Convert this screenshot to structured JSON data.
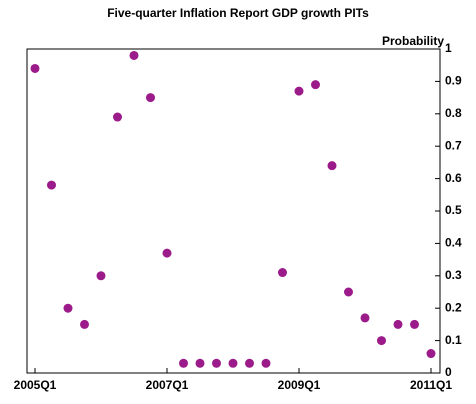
{
  "chart_data": {
    "type": "scatter",
    "title": "Five-quarter Inflation Report GDP growth PITs",
    "y_label": "Probability",
    "categories": [
      "2005Q1",
      null,
      null,
      null,
      null,
      null,
      null,
      null,
      "2007Q1",
      null,
      null,
      null,
      null,
      null,
      null,
      null,
      "2009Q1",
      null,
      null,
      null,
      null,
      null,
      null,
      null,
      "2011Q1"
    ],
    "values": [
      0.94,
      0.58,
      0.2,
      0.15,
      0.3,
      0.79,
      0.98,
      0.85,
      0.37,
      0.03,
      0.03,
      0.03,
      0.03,
      0.03,
      0.03,
      0.31,
      0.87,
      0.89,
      0.64,
      0.25,
      0.17,
      0.1,
      0.15,
      0.15,
      0.06
    ],
    "color": "#9b1b8a",
    "ylim": [
      0,
      1
    ],
    "yticks": [
      0,
      0.1,
      0.2,
      0.3,
      0.4,
      0.5,
      0.6,
      0.7,
      0.8,
      0.9,
      1
    ],
    "y_axis_side": "right",
    "grid": false
  }
}
